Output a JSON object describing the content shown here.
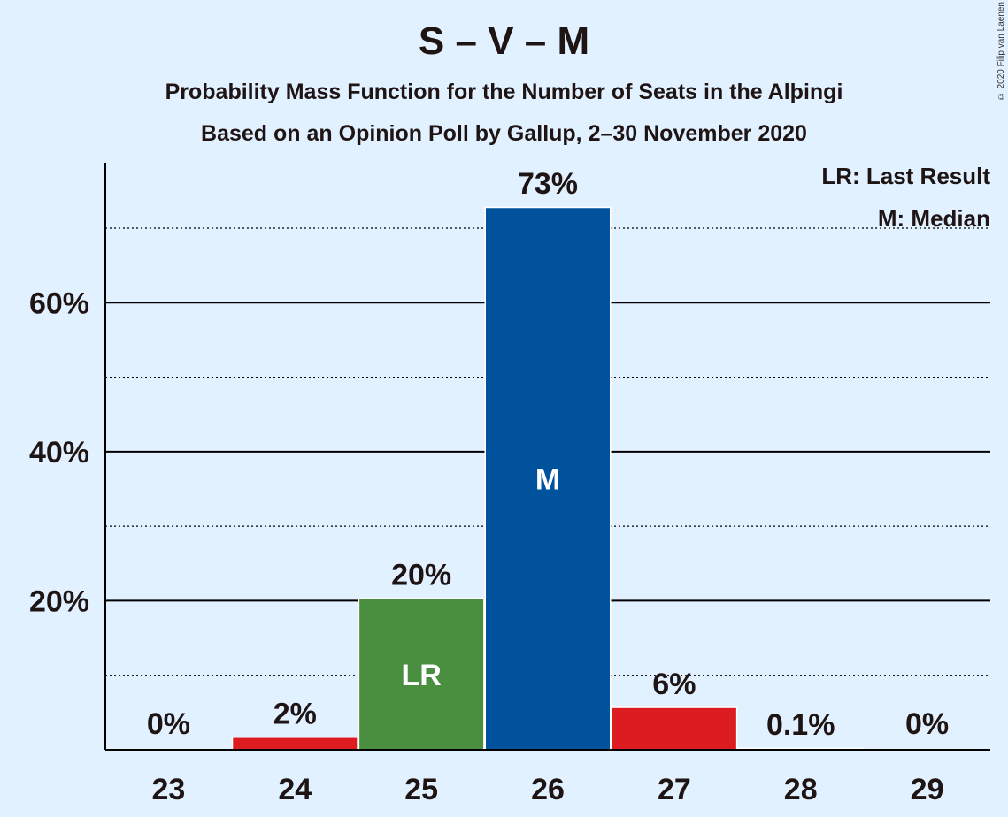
{
  "header": {
    "title": "S – V – M",
    "subtitle1": "Probability Mass Function for the Number of Seats in the Alþingi",
    "subtitle2": "Based on an Opinion Poll by Gallup, 2–30 November 2020",
    "copyright": "© 2020 Filip van Laenen"
  },
  "legend": {
    "last_result": "LR: Last Result",
    "median": "M: Median"
  },
  "chart_data": {
    "type": "bar",
    "categories": [
      "23",
      "24",
      "25",
      "26",
      "27",
      "28",
      "29"
    ],
    "values": [
      0,
      1.6,
      20.2,
      72.7,
      5.6,
      0.1,
      0
    ],
    "value_labels": [
      "0%",
      "2%",
      "20%",
      "73%",
      "6%",
      "0.1%",
      "0%"
    ],
    "bar_colors": [
      "#e2f1ff",
      "#dd1c22",
      "#4a8f3f",
      "#00529c",
      "#dd1c22",
      "#e2f1ff",
      "#e2f1ff"
    ],
    "inner_labels": [
      "",
      "",
      "LR",
      "M",
      "",
      "",
      ""
    ],
    "ylim": [
      0,
      80
    ],
    "yticks": [
      20,
      40,
      60
    ],
    "ytick_labels": [
      "20%",
      "40%",
      "60%"
    ],
    "minor_gridlines": [
      10,
      30,
      50,
      70
    ],
    "title": "",
    "xlabel": "",
    "ylabel": ""
  }
}
